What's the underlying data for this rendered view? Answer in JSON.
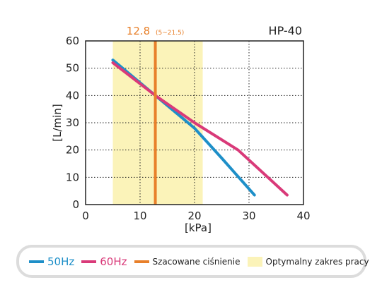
{
  "colors": {
    "hz50": "#1e8fc8",
    "hz60": "#d93a79",
    "estimate": "#e8802a",
    "range": "#fbf3b9",
    "legend_border": "#dcdcdc"
  },
  "legend": {
    "hz50": "50Hz",
    "hz60": "60Hz",
    "estimate": "Szacowane ciśnienie",
    "range": "Optymalny zakres pracy"
  },
  "chart_data": {
    "type": "line",
    "model": "HP-40",
    "xlabel": "[kPa]",
    "ylabel": "[L/min]",
    "xlim": [
      0,
      40
    ],
    "ylim": [
      0,
      60
    ],
    "xticks": [
      0,
      10,
      20,
      30,
      40
    ],
    "yticks": [
      0,
      10,
      20,
      30,
      40,
      50,
      60
    ],
    "grid": "dotted",
    "series": [
      {
        "name": "50Hz",
        "x": [
          5,
          12.8,
          20,
          25,
          31
        ],
        "y": [
          53,
          40,
          28,
          17,
          3.5
        ]
      },
      {
        "name": "60Hz",
        "x": [
          5,
          12.8,
          20,
          28,
          37
        ],
        "y": [
          52,
          40,
          30,
          20,
          3.5
        ]
      }
    ],
    "estimate": {
      "value": 12.8,
      "label": "12.8",
      "range_label": "(5~21.5)"
    },
    "optimal_range": [
      5,
      21.5
    ]
  }
}
